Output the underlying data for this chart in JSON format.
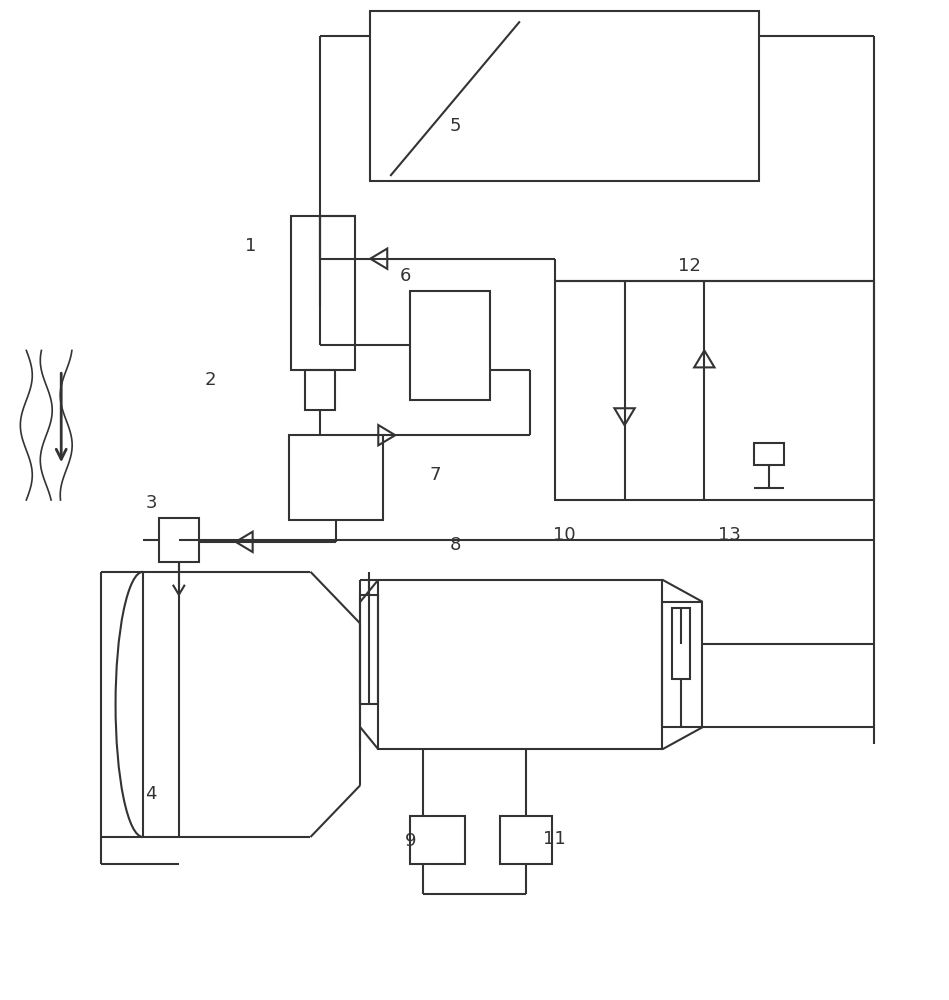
{
  "bg": "#ffffff",
  "lc": "#333333",
  "lw": 1.5,
  "fw": 9.49,
  "fh": 10.0,
  "xmax": 9.49,
  "ymax": 10.0
}
